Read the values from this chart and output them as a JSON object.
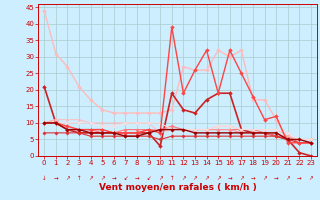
{
  "title": "",
  "xlabel": "Vent moyen/en rafales ( km/h )",
  "ylabel": "",
  "xlim": [
    -0.5,
    23.5
  ],
  "ylim": [
    0,
    46
  ],
  "yticks": [
    0,
    5,
    10,
    15,
    20,
    25,
    30,
    35,
    40,
    45
  ],
  "xticks": [
    0,
    1,
    2,
    3,
    4,
    5,
    6,
    7,
    8,
    9,
    10,
    11,
    12,
    13,
    14,
    15,
    16,
    17,
    18,
    19,
    20,
    21,
    22,
    23
  ],
  "bg_color": "#cceeff",
  "grid_color": "#aacccc",
  "series": [
    {
      "x": [
        0,
        1,
        2,
        3,
        4,
        5,
        6,
        7,
        8,
        9,
        10,
        11,
        12,
        13,
        14,
        15,
        16,
        17,
        18,
        19,
        20,
        21,
        22,
        23
      ],
      "y": [
        44,
        31,
        27,
        21,
        17,
        14,
        13,
        13,
        13,
        13,
        13,
        14,
        27,
        26,
        26,
        32,
        30,
        32,
        17,
        17,
        11,
        5,
        4,
        4
      ],
      "color": "#ffbbbb",
      "lw": 1.0,
      "marker": "D",
      "ms": 2.0
    },
    {
      "x": [
        0,
        1,
        2,
        3,
        4,
        5,
        6,
        7,
        8,
        9,
        10,
        11,
        12,
        13,
        14,
        15,
        16,
        17,
        18,
        19,
        20,
        21,
        22,
        23
      ],
      "y": [
        21,
        10,
        8,
        7,
        7,
        7,
        7,
        7,
        7,
        7,
        3,
        19,
        14,
        13,
        17,
        19,
        19,
        8,
        7,
        7,
        6,
        5,
        1,
        0
      ],
      "color": "#cc2222",
      "lw": 1.2,
      "marker": "D",
      "ms": 2.0
    },
    {
      "x": [
        0,
        1,
        2,
        3,
        4,
        5,
        6,
        7,
        8,
        9,
        10,
        11,
        12,
        13,
        14,
        15,
        16,
        17,
        18,
        19,
        20,
        21,
        22,
        23
      ],
      "y": [
        10,
        10,
        8,
        8,
        8,
        7,
        7,
        8,
        8,
        8,
        8,
        9,
        8,
        8,
        8,
        8,
        8,
        8,
        8,
        7,
        6,
        6,
        4,
        4
      ],
      "color": "#ff7777",
      "lw": 0.8,
      "marker": "D",
      "ms": 1.8
    },
    {
      "x": [
        0,
        1,
        2,
        3,
        4,
        5,
        6,
        7,
        8,
        9,
        10,
        11,
        12,
        13,
        14,
        15,
        16,
        17,
        18,
        19,
        20,
        21,
        22,
        23
      ],
      "y": [
        10,
        11,
        8,
        8,
        8,
        8,
        7,
        7,
        7,
        8,
        8,
        8,
        8,
        8,
        8,
        8,
        8,
        7,
        7,
        7,
        7,
        5,
        5,
        5
      ],
      "color": "#ff9999",
      "lw": 0.8,
      "marker": "D",
      "ms": 1.8
    },
    {
      "x": [
        0,
        1,
        2,
        3,
        4,
        5,
        6,
        7,
        8,
        9,
        10,
        11,
        12,
        13,
        14,
        15,
        16,
        17,
        18,
        19,
        20,
        21,
        22,
        23
      ],
      "y": [
        10,
        11,
        11,
        11,
        10,
        10,
        10,
        10,
        10,
        10,
        7,
        8,
        8,
        8,
        8,
        9,
        9,
        8,
        8,
        8,
        8,
        6,
        5,
        5
      ],
      "color": "#ffbbbb",
      "lw": 0.7,
      "marker": "D",
      "ms": 1.5
    },
    {
      "x": [
        0,
        1,
        2,
        3,
        4,
        5,
        6,
        7,
        8,
        9,
        10,
        11,
        12,
        13,
        14,
        15,
        16,
        17,
        18,
        19,
        20,
        21,
        22,
        23
      ],
      "y": [
        10,
        10,
        10,
        10,
        10,
        9,
        9,
        10,
        10,
        10,
        10,
        8,
        8,
        8,
        8,
        9,
        9,
        8,
        8,
        8,
        8,
        7,
        5,
        5
      ],
      "color": "#ffdddd",
      "lw": 0.7,
      "marker": "D",
      "ms": 1.5
    },
    {
      "x": [
        0,
        1,
        2,
        3,
        4,
        5,
        6,
        7,
        8,
        9,
        10,
        11,
        12,
        13,
        14,
        15,
        16,
        17,
        18,
        19,
        20,
        21,
        22,
        23
      ],
      "y": [
        7,
        7,
        7,
        7,
        6,
        6,
        6,
        6,
        6,
        6,
        5,
        6,
        6,
        6,
        6,
        6,
        6,
        6,
        6,
        6,
        6,
        5,
        4,
        4
      ],
      "color": "#dd3333",
      "lw": 0.8,
      "marker": "D",
      "ms": 1.8
    },
    {
      "x": [
        0,
        1,
        2,
        3,
        4,
        5,
        6,
        7,
        8,
        9,
        10,
        11,
        12,
        13,
        14,
        15,
        16,
        17,
        18,
        19,
        20,
        21,
        22,
        23
      ],
      "y": [
        10,
        10,
        9,
        8,
        8,
        8,
        7,
        7,
        7,
        8,
        7,
        39,
        19,
        26,
        32,
        19,
        32,
        25,
        18,
        11,
        12,
        4,
        4,
        4
      ],
      "color": "#ff4444",
      "lw": 1.0,
      "marker": "D",
      "ms": 2.0
    },
    {
      "x": [
        0,
        1,
        2,
        3,
        4,
        5,
        6,
        7,
        8,
        9,
        10,
        11,
        12,
        13,
        14,
        15,
        16,
        17,
        18,
        19,
        20,
        21,
        22,
        23
      ],
      "y": [
        10,
        10,
        8,
        8,
        7,
        7,
        7,
        6,
        6,
        7,
        8,
        8,
        8,
        7,
        7,
        7,
        7,
        7,
        7,
        7,
        7,
        5,
        5,
        4
      ],
      "color": "#990000",
      "lw": 1.0,
      "marker": "D",
      "ms": 1.8
    }
  ],
  "xlabel_fontsize": 6.5,
  "tick_fontsize": 5.0
}
